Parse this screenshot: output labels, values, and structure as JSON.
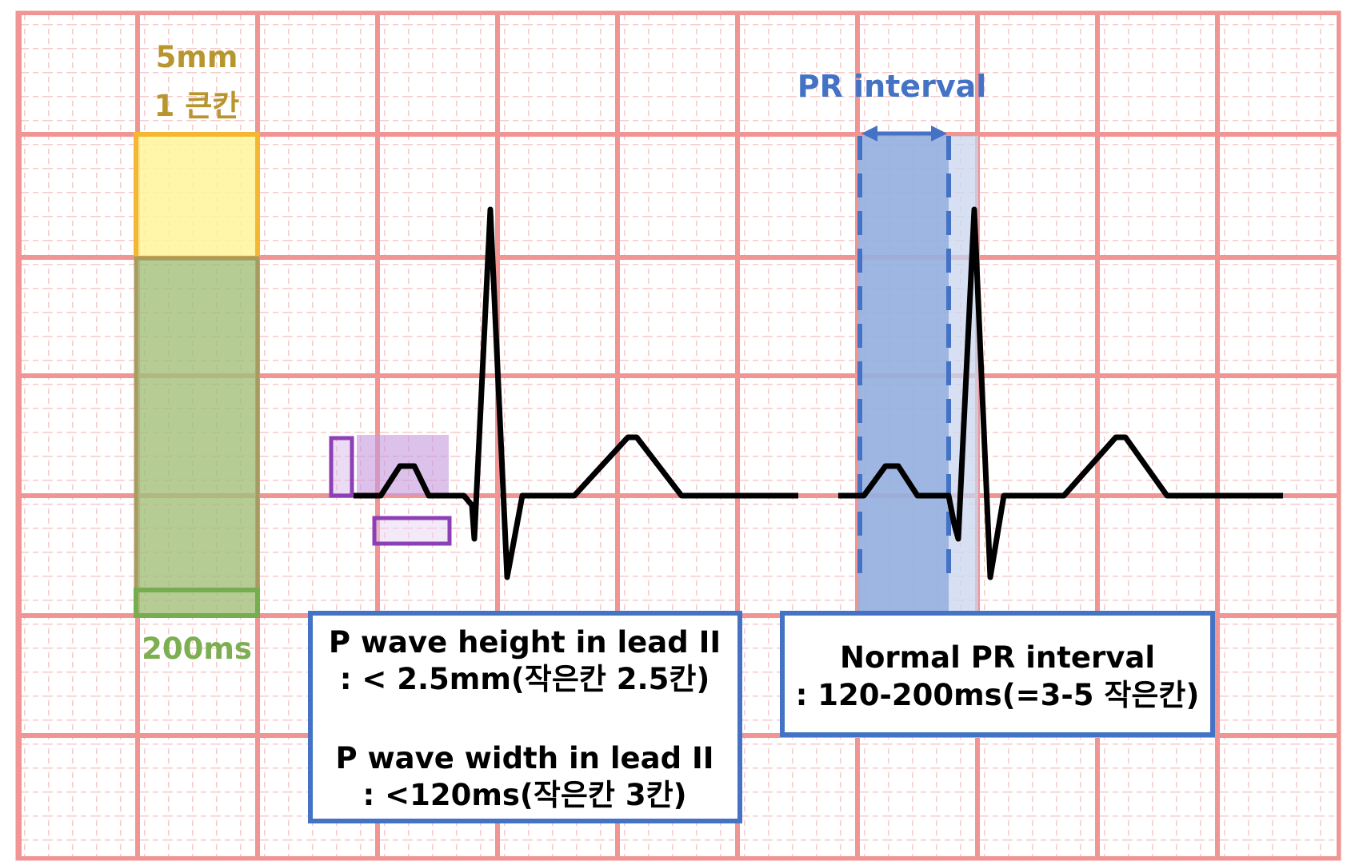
{
  "labels": {
    "big_box_height": "5mm",
    "big_box_count": "1 큰칸",
    "big_box_duration": "200ms",
    "pr_interval_title": "PR interval"
  },
  "p_wave_box": {
    "line1": "P wave height in lead II",
    "line2": ": <  2.5mm(작은칸 2.5칸)",
    "line3": "P wave width in lead II",
    "line4": ": <120ms(작은칸 3칸)"
  },
  "pr_box": {
    "line1": "Normal PR interval",
    "line2": ": 120-200ms(=3-5 작은칸)"
  },
  "colors": {
    "grid_major": "#f09494",
    "grid_minor": "#f6c9c9",
    "gold_text": "#b8962f",
    "yellow_fill": "#fff59a",
    "yellow_border": "#f5b731",
    "green_fill": "#a3bf7a",
    "green_border": "#77ad4f",
    "green_text": "#7cae52",
    "blue": "#4472c4",
    "blue_fill": "#7f9fd8",
    "purple": "#8d3fb5",
    "purple_fill": "#c59add",
    "trace": "#000000"
  }
}
